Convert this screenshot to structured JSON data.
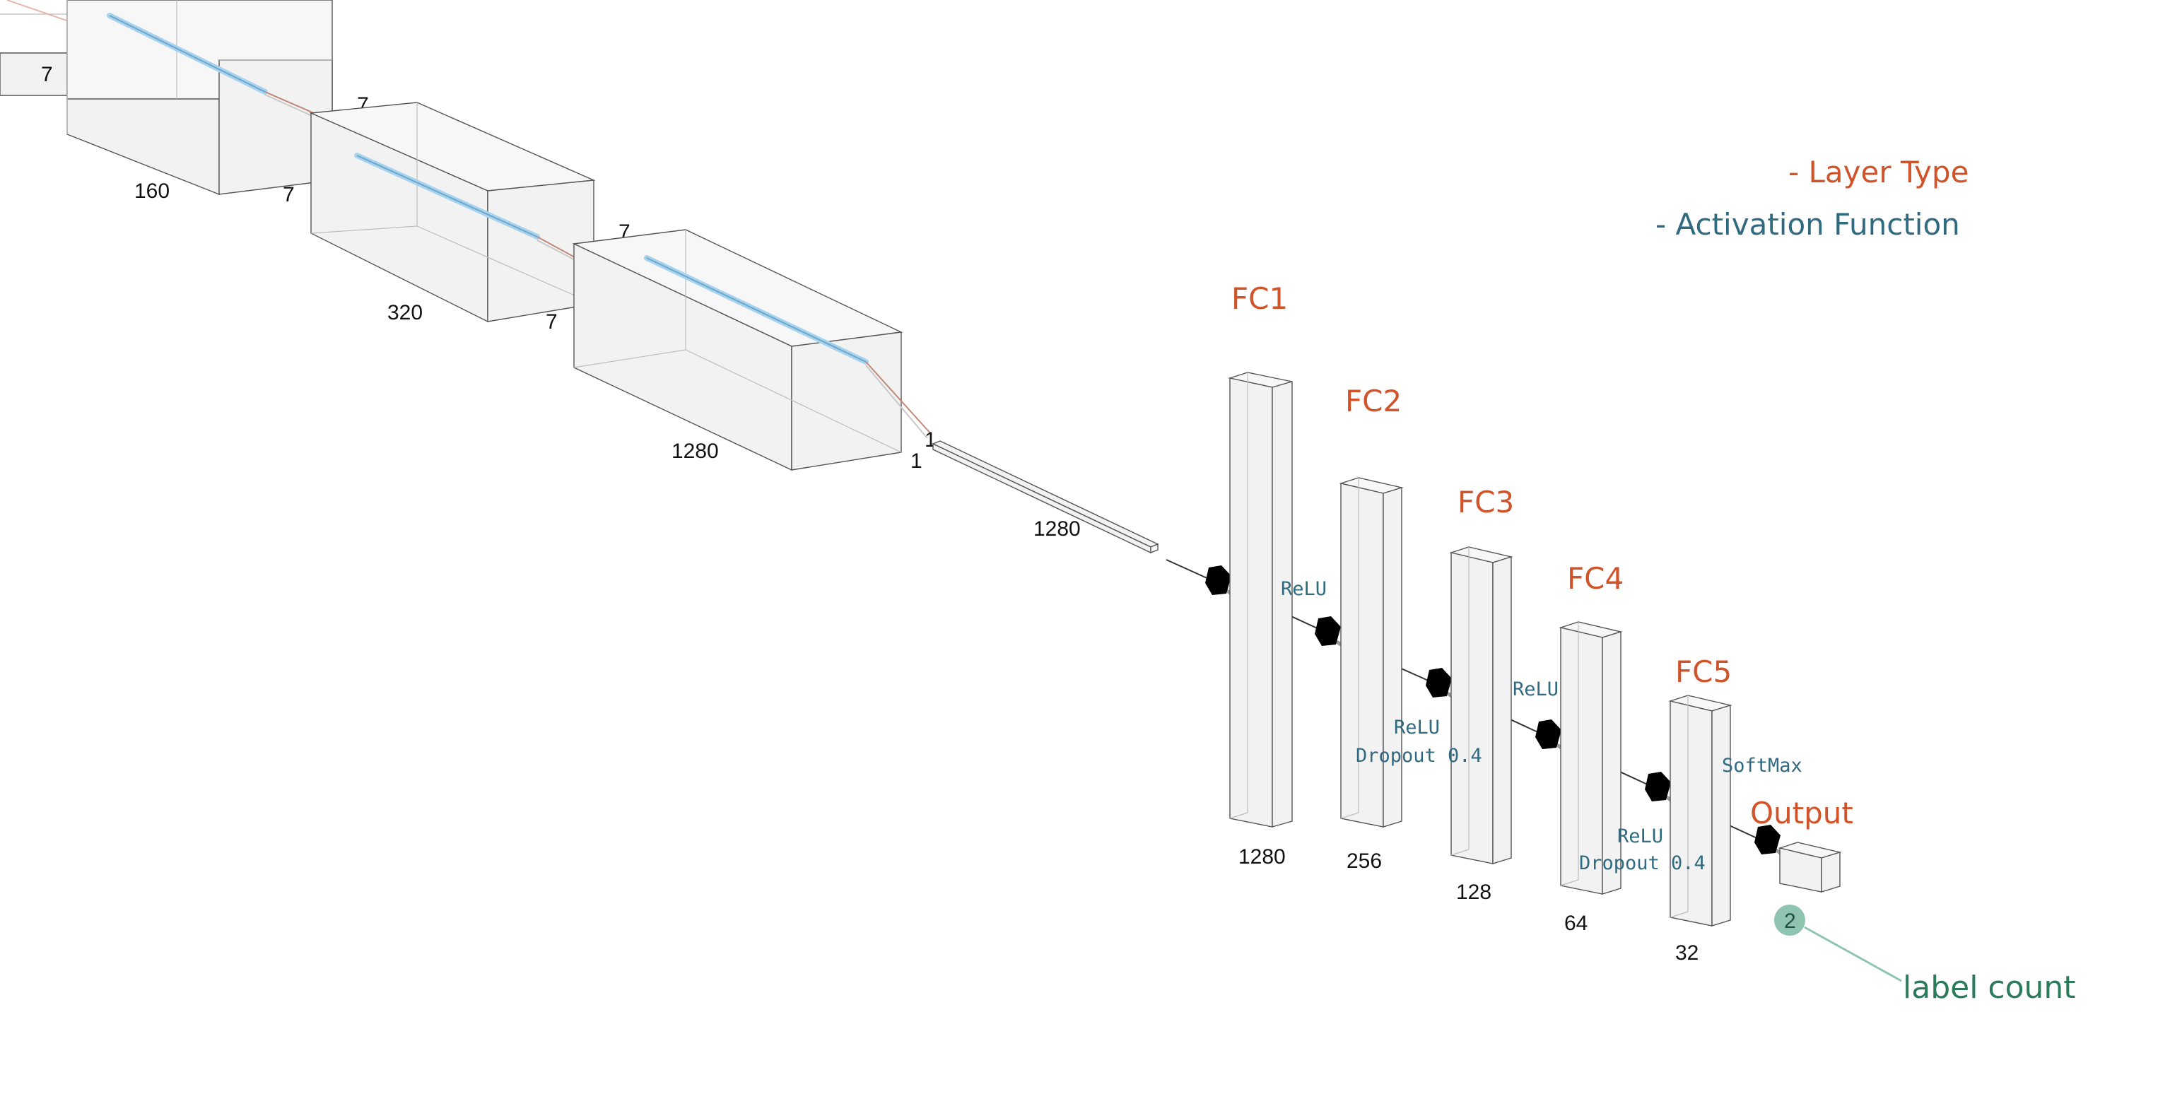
{
  "legend": {
    "layer_type": "- Layer Type",
    "activation_function": "- Activation Function",
    "layer_type_color": "#d0532a",
    "activation_color": "#2f6a80"
  },
  "conv_blocks": [
    {
      "depth": "7",
      "width": "",
      "height": ""
    },
    {
      "depth": "7",
      "width": "160",
      "height": "7"
    },
    {
      "depth": "7",
      "width": "320",
      "height": "7"
    },
    {
      "depth": "1",
      "width": "1280",
      "height": "1"
    }
  ],
  "flatten": {
    "depth": "1",
    "width": "1280"
  },
  "fc_layers": [
    {
      "name": "FC1",
      "units": "1280"
    },
    {
      "name": "FC2",
      "units": "256"
    },
    {
      "name": "FC3",
      "units": "128"
    },
    {
      "name": "FC4",
      "units": "64"
    },
    {
      "name": "FC5",
      "units": "32"
    },
    {
      "name": "Output",
      "units": ""
    }
  ],
  "activations": {
    "fc1": "ReLU",
    "fc2_line1": "ReLU",
    "fc2_line2": "Dropout 0.4",
    "fc3": "ReLU",
    "fc4_line1": "ReLU",
    "fc4_line2": "Dropout 0.4",
    "fc5": "SoftMax"
  },
  "output": {
    "count": "2",
    "annotation": "label count",
    "badge_color": "#8ec4b0",
    "annotation_color": "#2b7a5a"
  }
}
